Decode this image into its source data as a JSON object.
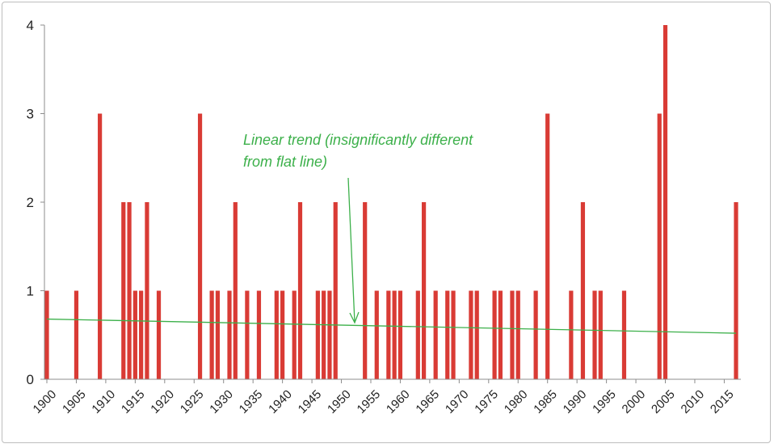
{
  "chart_data": {
    "type": "bar",
    "title": "",
    "xlabel": "",
    "ylabel": "",
    "xlim": [
      1900,
      2017
    ],
    "ylim": [
      0,
      4
    ],
    "yticks": [
      0,
      1,
      2,
      3,
      4
    ],
    "xticks": [
      1900,
      1905,
      1910,
      1915,
      1920,
      1925,
      1930,
      1935,
      1940,
      1945,
      1950,
      1955,
      1960,
      1965,
      1970,
      1975,
      1980,
      1985,
      1990,
      1995,
      2000,
      2005,
      2010,
      2015
    ],
    "grid": false,
    "bar_color": "#d93b35",
    "series": [
      {
        "x": [
          1900,
          1905,
          1909,
          1913,
          1914,
          1915,
          1916,
          1917,
          1919,
          1926,
          1928,
          1929,
          1931,
          1932,
          1934,
          1936,
          1939,
          1940,
          1942,
          1943,
          1946,
          1947,
          1948,
          1949,
          1954,
          1956,
          1958,
          1959,
          1960,
          1963,
          1964,
          1966,
          1968,
          1969,
          1972,
          1973,
          1976,
          1977,
          1979,
          1980,
          1983,
          1985,
          1989,
          1991,
          1993,
          1994,
          1998,
          2004,
          2005,
          2017
        ],
        "values": [
          1,
          1,
          3,
          2,
          2,
          1,
          1,
          2,
          1,
          3,
          1,
          1,
          1,
          2,
          1,
          1,
          1,
          1,
          1,
          2,
          1,
          1,
          1,
          2,
          2,
          1,
          1,
          1,
          1,
          1,
          2,
          1,
          1,
          1,
          1,
          1,
          1,
          1,
          1,
          1,
          1,
          3,
          1,
          2,
          1,
          1,
          1,
          3,
          4,
          2
        ]
      }
    ],
    "trend": {
      "color": "#3cb04a",
      "x": [
        1900,
        2017
      ],
      "y": [
        0.68,
        0.52
      ]
    },
    "annotation": {
      "lines": [
        "Linear trend (insignificantly different",
        "from flat line)"
      ],
      "color": "#3cb04a"
    }
  }
}
